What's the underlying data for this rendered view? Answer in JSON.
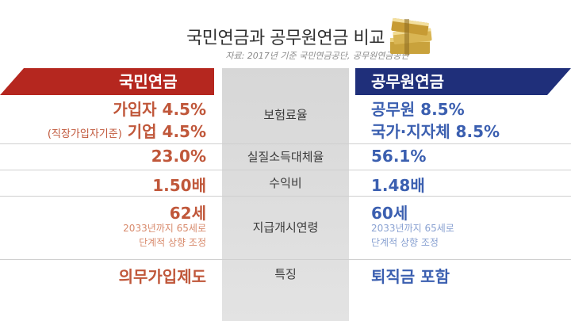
{
  "title": "국민연금과 공무원연금 비교",
  "source": "자료: 2017년 기준 국민연금공단, 공무원연금공단",
  "left_header": "국민연금",
  "right_header": "공무원연금",
  "colors": {
    "left_accent": "#b5271f",
    "right_accent": "#1f2f7a"
  },
  "rows": {
    "premium": {
      "label": "보험료율",
      "left_line1": "가입자 4.5%",
      "left_line2_note": "(직장가입자기준)",
      "left_line2": "기업 4.5%",
      "right_line1": "공무원 8.5%",
      "right_line2": "국가·지자체 8.5%"
    },
    "replacement": {
      "label": "실질소득대체율",
      "left": "23.0%",
      "right": "56.1%"
    },
    "return_ratio": {
      "label": "수익비",
      "left": "1.50배",
      "right": "1.48배"
    },
    "start_age": {
      "label": "지급개시연령",
      "left": "62세",
      "left_note1": "2033년까지 65세로",
      "left_note2": "단계적 상향 조정",
      "right": "60세",
      "right_note1": "2033년까지 65세로",
      "right_note2": "단계적 상향 조정"
    },
    "feature": {
      "label": "특징",
      "left": "의무가입제도",
      "right": "퇴직금 포함"
    }
  },
  "decor_icon": "money-bundle-icon"
}
